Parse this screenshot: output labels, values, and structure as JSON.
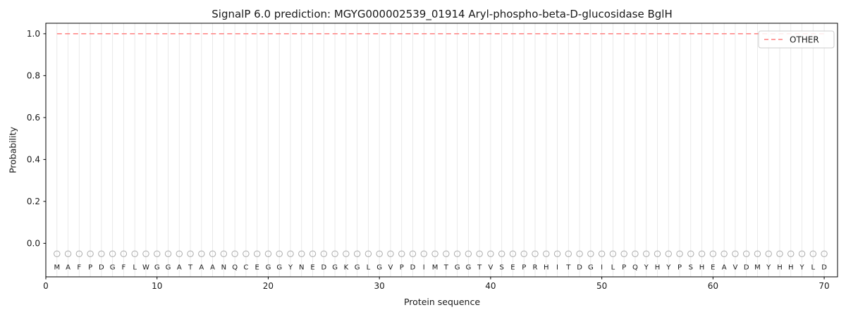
{
  "chart_data": {
    "type": "line",
    "title": "SignalP 6.0 prediction: MGYG000002539_01914 Aryl-phospho-beta-D-glucosidase BglH",
    "xlabel": "Protein sequence",
    "ylabel": "Probability",
    "xlim": [
      0,
      71.2
    ],
    "ylim": [
      -0.16,
      1.05
    ],
    "xticks": [
      "0",
      "10",
      "20",
      "30",
      "40",
      "50",
      "60",
      "70"
    ],
    "yticks": [
      "0.0",
      "0.2",
      "0.4",
      "0.6",
      "0.8",
      "1.0"
    ],
    "grid": "vertical line per residue",
    "gridline_color": "#e4e4e4",
    "sequence": "MAFPDGFLWGGATAANQCEGGYNEDGKGLGVPDIMTGGTVSEPRHITDGILPQYHYPSHEAVDMYHHYLD",
    "series": [
      {
        "name": "OTHER",
        "color": "#ff7f7f",
        "line_style": "dashed",
        "x_range": [
          1,
          70
        ],
        "y_constant": 1.0
      }
    ],
    "marker_row": {
      "y": -0.05,
      "radius": 4.2,
      "stroke": "#ababab",
      "fill": "none"
    },
    "letter_row": {
      "y": -0.112,
      "color": "#1a1a1a"
    },
    "legend": {
      "position": "upper right",
      "entries": [
        {
          "label": "OTHER",
          "color": "#ff7f7f",
          "dash": true
        }
      ]
    }
  }
}
